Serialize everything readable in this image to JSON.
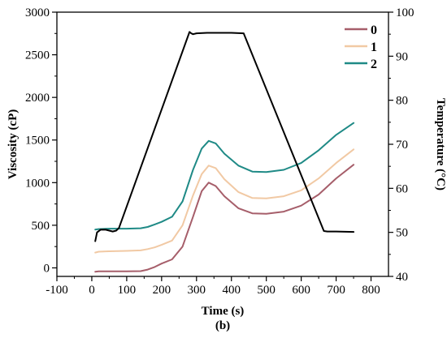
{
  "chart_data": {
    "type": "line",
    "caption": "(b)",
    "xlabel": "Time (s)",
    "ylabel": "Viscosity (cP)",
    "y2label": "Temperature (°C)",
    "xlim": [
      -100,
      850
    ],
    "ylim": [
      -100,
      3000
    ],
    "y2lim": [
      40,
      100
    ],
    "xticks": [
      -100,
      0,
      100,
      200,
      300,
      400,
      500,
      600,
      700,
      800
    ],
    "yticks": [
      0,
      500,
      1000,
      1500,
      2000,
      2500,
      3000
    ],
    "y2ticks": [
      40,
      50,
      60,
      70,
      80,
      90,
      100
    ],
    "legend_position": "top-right",
    "series": [
      {
        "name": "0",
        "color": "#a65e6a",
        "axis": "left",
        "x": [
          10,
          20,
          50,
          100,
          140,
          160,
          180,
          200,
          230,
          260,
          290,
          315,
          335,
          355,
          380,
          420,
          460,
          500,
          550,
          600,
          650,
          700,
          750
        ],
        "y": [
          -45,
          -40,
          -40,
          -40,
          -38,
          -20,
          10,
          50,
          100,
          250,
          600,
          900,
          1000,
          960,
          840,
          700,
          640,
          635,
          660,
          730,
          860,
          1050,
          1210
        ]
      },
      {
        "name": "1",
        "color": "#f1c9a4",
        "axis": "left",
        "x": [
          10,
          20,
          50,
          100,
          140,
          160,
          180,
          200,
          230,
          260,
          290,
          315,
          335,
          355,
          380,
          420,
          460,
          500,
          550,
          600,
          650,
          700,
          750
        ],
        "y": [
          180,
          190,
          195,
          200,
          205,
          220,
          240,
          270,
          320,
          500,
          850,
          1100,
          1200,
          1170,
          1040,
          890,
          820,
          815,
          840,
          910,
          1050,
          1230,
          1390
        ]
      },
      {
        "name": "2",
        "color": "#1f8a86",
        "axis": "left",
        "x": [
          10,
          20,
          50,
          100,
          140,
          160,
          180,
          200,
          230,
          260,
          290,
          315,
          335,
          355,
          380,
          420,
          460,
          500,
          550,
          600,
          650,
          700,
          750
        ],
        "y": [
          450,
          455,
          460,
          460,
          465,
          480,
          510,
          540,
          600,
          780,
          1150,
          1400,
          1490,
          1460,
          1340,
          1200,
          1130,
          1125,
          1150,
          1230,
          1380,
          1560,
          1700
        ]
      },
      {
        "name": "Temperature",
        "color": "#000000",
        "axis": "right",
        "x": [
          10,
          15,
          25,
          40,
          60,
          70,
          78,
          280,
          285,
          290,
          300,
          330,
          400,
          435,
          665,
          675,
          700,
          750
        ],
        "y": [
          48,
          50,
          50.6,
          50.6,
          50.2,
          50.4,
          51,
          95.5,
          95.2,
          95,
          95.2,
          95.3,
          95.3,
          95.2,
          50.3,
          50.2,
          50.2,
          50.1
        ]
      }
    ]
  }
}
